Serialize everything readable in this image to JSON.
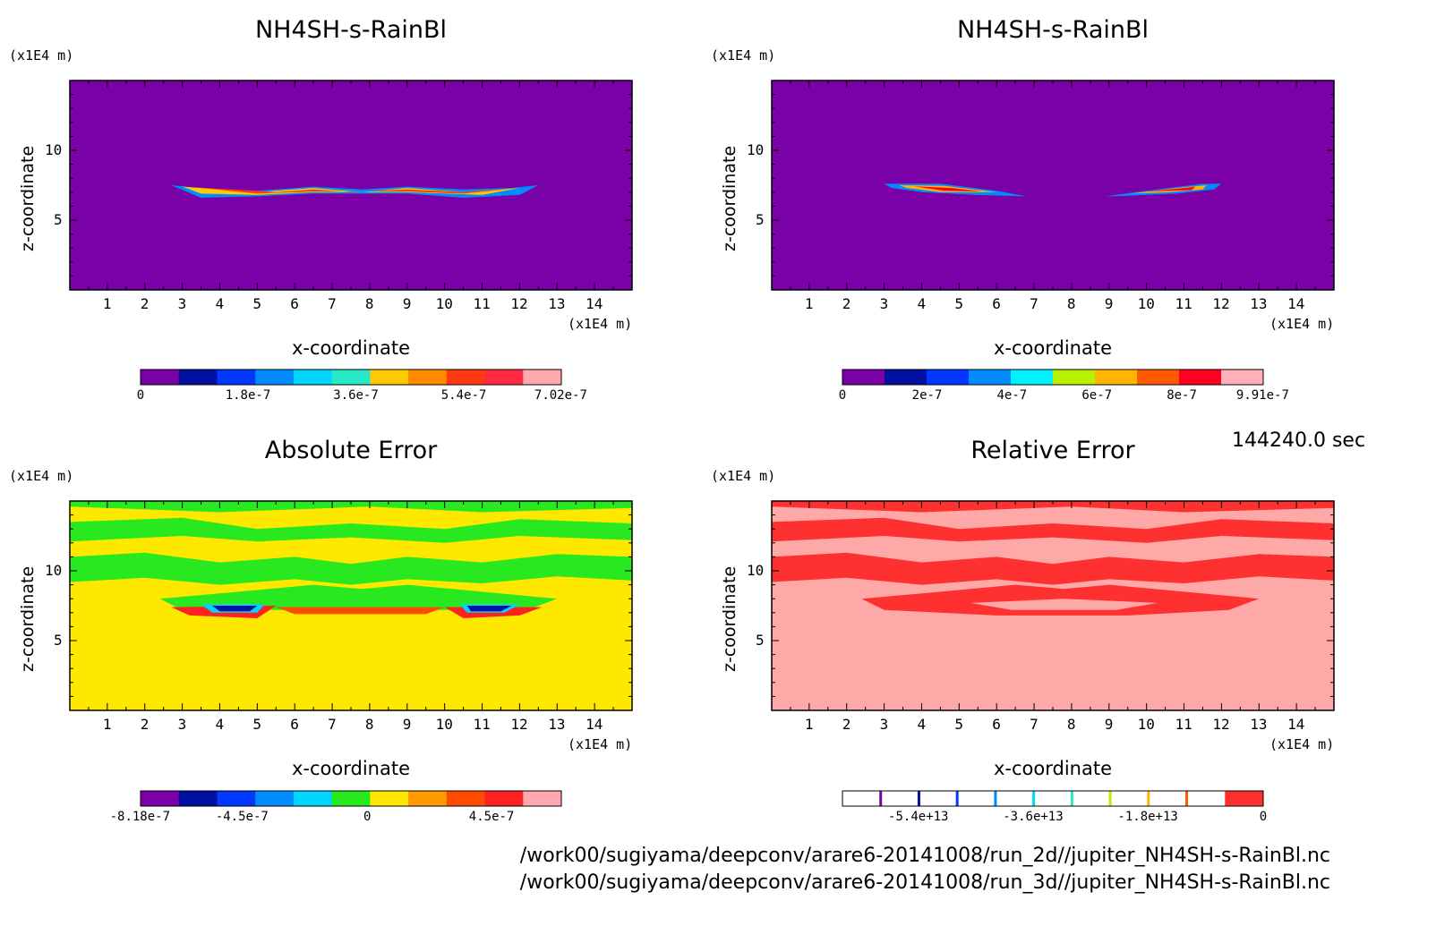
{
  "chart_data": [
    {
      "type": "heatmap",
      "title": "NH4SH-s-RainBl",
      "xlabel": "x-coordinate",
      "ylabel": "z-coordinate",
      "x_unit": "(x1E4 m)",
      "y_unit": "(x1E4 m)",
      "xlim": [
        0,
        15
      ],
      "ylim": [
        0,
        15
      ],
      "x_ticks": [
        1,
        2,
        3,
        4,
        5,
        6,
        7,
        8,
        9,
        10,
        11,
        12,
        13,
        14
      ],
      "y_ticks": [
        5,
        10
      ],
      "colorbar": {
        "min": 0,
        "max": 7.02e-07,
        "colors": [
          "#7a00a8",
          "#0010a0",
          "#0038ff",
          "#008cff",
          "#00d4ff",
          "#28e8c8",
          "#ffc800",
          "#ff8a00",
          "#ff3a10",
          "#ff2a40",
          "#ffa8b0"
        ],
        "tick_labels": [
          "0",
          "1.8e-7",
          "3.6e-7",
          "5.4e-7",
          "7.02e-7"
        ],
        "tick_values": [
          0,
          1.8e-07,
          3.6e-07,
          5.4e-07,
          7.02e-07
        ]
      },
      "background": "#7a00a8",
      "feature": "band of positive values near z=7 between x=2.7 and x=12.5"
    },
    {
      "type": "heatmap",
      "title": "NH4SH-s-RainBl",
      "xlabel": "x-coordinate",
      "ylabel": "z-coordinate",
      "x_unit": "(x1E4 m)",
      "y_unit": "(x1E4 m)",
      "xlim": [
        0,
        15
      ],
      "ylim": [
        0,
        15
      ],
      "x_ticks": [
        1,
        2,
        3,
        4,
        5,
        6,
        7,
        8,
        9,
        10,
        11,
        12,
        13,
        14
      ],
      "y_ticks": [
        5,
        10
      ],
      "colorbar": {
        "min": 0,
        "max": 9.91e-07,
        "colors": [
          "#7a00a8",
          "#0010a0",
          "#0038ff",
          "#008cff",
          "#00f0ff",
          "#b8f000",
          "#ffb400",
          "#ff5a00",
          "#ff0020",
          "#ffb0b8"
        ],
        "tick_labels": [
          "0",
          "2e-7",
          "4e-7",
          "6e-7",
          "8e-7",
          "9.91e-7"
        ],
        "tick_values": [
          0,
          2e-07,
          4e-07,
          6e-07,
          8e-07,
          9.91e-07
        ]
      },
      "background": "#7a00a8",
      "feature": "two wedge-shaped blobs near z=7 at x=3-7 and x=9-12"
    },
    {
      "type": "heatmap",
      "title": "Absolute Error",
      "xlabel": "x-coordinate",
      "ylabel": "z-coordinate",
      "x_unit": "(x1E4 m)",
      "y_unit": "(x1E4 m)",
      "xlim": [
        0,
        15
      ],
      "ylim": [
        0,
        15
      ],
      "x_ticks": [
        1,
        2,
        3,
        4,
        5,
        6,
        7,
        8,
        9,
        10,
        11,
        12,
        13,
        14
      ],
      "y_ticks": [
        5,
        10
      ],
      "colorbar": {
        "min": -8.18e-07,
        "max": 7e-07,
        "colors": [
          "#7a00a8",
          "#0010a0",
          "#0038ff",
          "#008cff",
          "#00d4ff",
          "#28e820",
          "#ffe800",
          "#ff9a00",
          "#ff4a00",
          "#ff2020",
          "#ffa8b0"
        ],
        "tick_labels": [
          "-8.18e-7",
          "-4.5e-7",
          "0",
          "4.5e-7"
        ],
        "tick_values": [
          -8.18e-07,
          -4.5e-07,
          0,
          4.5e-07
        ]
      },
      "background": "#ffe800"
    },
    {
      "type": "heatmap",
      "title": "Relative Error",
      "xlabel": "x-coordinate",
      "ylabel": "z-coordinate",
      "x_unit": "(x1E4 m)",
      "y_unit": "(x1E4 m)",
      "xlim": [
        0,
        15
      ],
      "ylim": [
        0,
        15
      ],
      "x_ticks": [
        1,
        2,
        3,
        4,
        5,
        6,
        7,
        8,
        9,
        10,
        11,
        12,
        13,
        14
      ],
      "y_ticks": [
        5,
        10
      ],
      "colorbar": {
        "min": -66000000000000.0,
        "max": 0,
        "colors": [
          "#ffffff",
          "#ffffff",
          "#ffffff",
          "#ffffff",
          "#ffffff",
          "#ffffff",
          "#ffffff",
          "#ffffff",
          "#ffffff",
          "#ffffff",
          "#ff3030"
        ],
        "line_colors": [
          "#7a00a8",
          "#0010a0",
          "#0038ff",
          "#008cff",
          "#00d4ff",
          "#28e8c8",
          "#b8f000",
          "#ffb400",
          "#ff5a00"
        ],
        "tick_labels": [
          "-5.4e+13",
          "-3.6e+13",
          "-1.8e+13",
          "0"
        ],
        "tick_values": [
          -54000000000000.0,
          -36000000000000.0,
          -18000000000000.0,
          0
        ]
      },
      "background": "#ffa8a8"
    }
  ],
  "time_label": "144240.0 sec",
  "paths": [
    "/work00/sugiyama/deepconv/arare6-20141008/run_2d//jupiter_NH4SH-s-RainBl.nc",
    "/work00/sugiyama/deepconv/arare6-20141008/run_3d//jupiter_NH4SH-s-RainBl.nc"
  ]
}
